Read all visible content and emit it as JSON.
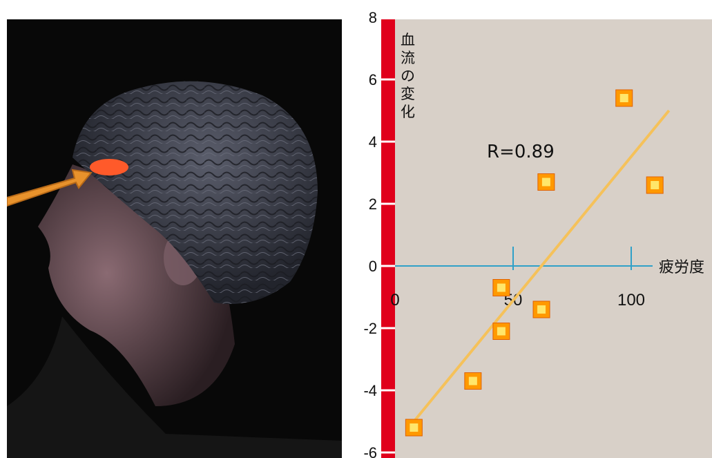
{
  "chart_data": {
    "type": "scatter",
    "title": "",
    "xlabel": "疲労度",
    "ylabel": "血流の変化",
    "xlim": [
      0,
      120
    ],
    "ylim": [
      -6,
      8
    ],
    "x_ticks": [
      0,
      50,
      100
    ],
    "y_ticks": [
      8,
      6,
      4,
      2,
      0,
      -2,
      -4,
      -6
    ],
    "annotation": "R=0.89",
    "series": [
      {
        "points": [
          {
            "x": 8,
            "y": -5.2
          },
          {
            "x": 33,
            "y": -3.7
          },
          {
            "x": 45,
            "y": -2.1
          },
          {
            "x": 45,
            "y": -0.7
          },
          {
            "x": 62,
            "y": -1.4
          },
          {
            "x": 64,
            "y": 2.7
          },
          {
            "x": 97,
            "y": 5.4
          },
          {
            "x": 110,
            "y": 2.6
          }
        ]
      }
    ],
    "regression_line": {
      "x1": 8,
      "y1": -5.0,
      "x2": 116,
      "y2": 5.0
    },
    "colors": {
      "panel": "#d8d0c8",
      "y_axis_bar": "#e0001b",
      "x_axis": "#2fa0c8",
      "regression": "#f5c15a",
      "marker": "#ff9900"
    }
  }
}
